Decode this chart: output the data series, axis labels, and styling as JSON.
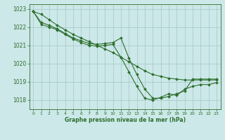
{
  "title": "Graphe pression niveau de la mer (hPa)",
  "background_color": "#cce8e8",
  "grid_color": "#aacccc",
  "line_color": "#2d6e2d",
  "xlim": [
    -0.5,
    23.5
  ],
  "ylim": [
    1017.5,
    1023.25
  ],
  "yticks": [
    1018,
    1019,
    1020,
    1021,
    1022,
    1023
  ],
  "xticks": [
    0,
    1,
    2,
    3,
    4,
    5,
    6,
    7,
    8,
    9,
    10,
    11,
    12,
    13,
    14,
    15,
    16,
    17,
    18,
    19,
    20,
    21,
    22,
    23
  ],
  "series": [
    {
      "x": [
        0,
        1,
        2,
        3,
        4,
        5,
        6,
        7,
        8,
        9,
        10,
        11,
        12,
        13,
        14,
        15,
        16,
        17,
        18,
        19,
        20,
        21,
        22,
        23
      ],
      "y": [
        1022.85,
        1022.7,
        1022.4,
        1022.1,
        1021.85,
        1021.6,
        1021.4,
        1021.2,
        1021.0,
        1020.8,
        1020.6,
        1020.35,
        1020.1,
        1019.85,
        1019.6,
        1019.4,
        1019.3,
        1019.2,
        1019.15,
        1019.1,
        1019.1,
        1019.1,
        1019.1,
        1019.1
      ]
    },
    {
      "x": [
        0,
        1,
        2,
        3,
        4,
        5,
        6,
        7,
        8,
        9,
        10,
        11,
        12,
        13,
        14,
        15,
        16,
        17,
        18,
        19,
        20,
        21,
        22,
        23
      ],
      "y": [
        1022.85,
        1022.25,
        1022.1,
        1021.9,
        1021.65,
        1021.4,
        1021.25,
        1021.1,
        1021.05,
        1021.1,
        1021.15,
        1021.4,
        1020.3,
        1019.4,
        1018.6,
        1018.1,
        1018.1,
        1018.2,
        1018.35,
        1018.5,
        1019.15,
        1019.15,
        1019.15,
        1019.15
      ]
    },
    {
      "x": [
        0,
        1,
        2,
        3,
        4,
        5,
        6,
        7,
        8,
        9,
        10,
        11,
        12,
        13,
        14,
        15,
        16,
        17,
        18,
        19,
        20,
        21,
        22,
        23
      ],
      "y": [
        1022.85,
        1022.15,
        1022.0,
        1021.85,
        1021.6,
        1021.35,
        1021.15,
        1021.0,
        1020.95,
        1021.0,
        1021.05,
        1020.35,
        1019.55,
        1018.75,
        1018.1,
        1018.0,
        1018.15,
        1018.35,
        1018.25,
        1018.6,
        1018.75,
        1018.85,
        1018.85,
        1018.95
      ]
    }
  ]
}
